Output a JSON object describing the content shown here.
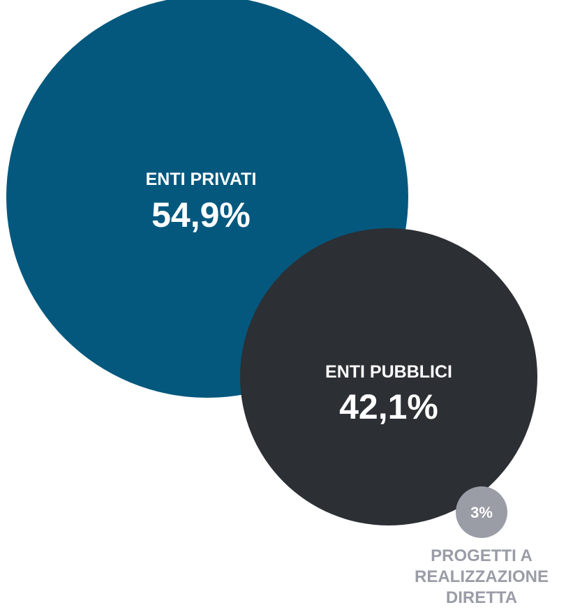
{
  "chart_data": {
    "type": "bubble",
    "series": [
      {
        "name": "ENTI PRIVATI",
        "value": 54.9,
        "value_label": "54,9%",
        "color": "#04587E",
        "text_color": "#FFFFFF"
      },
      {
        "name": "ENTI PUBBLICI",
        "value": 42.1,
        "value_label": "42,1%",
        "color": "#2C2F34",
        "text_color": "#FFFFFF"
      },
      {
        "name_lines": [
          "PROGETTI A",
          "REALIZZAZIONE",
          "DIRETTA"
        ],
        "value": 3,
        "value_label": "3%",
        "color": "#9A9CA6",
        "text_color": "#FFFFFF",
        "label_color": "#9A9CA6"
      }
    ]
  }
}
